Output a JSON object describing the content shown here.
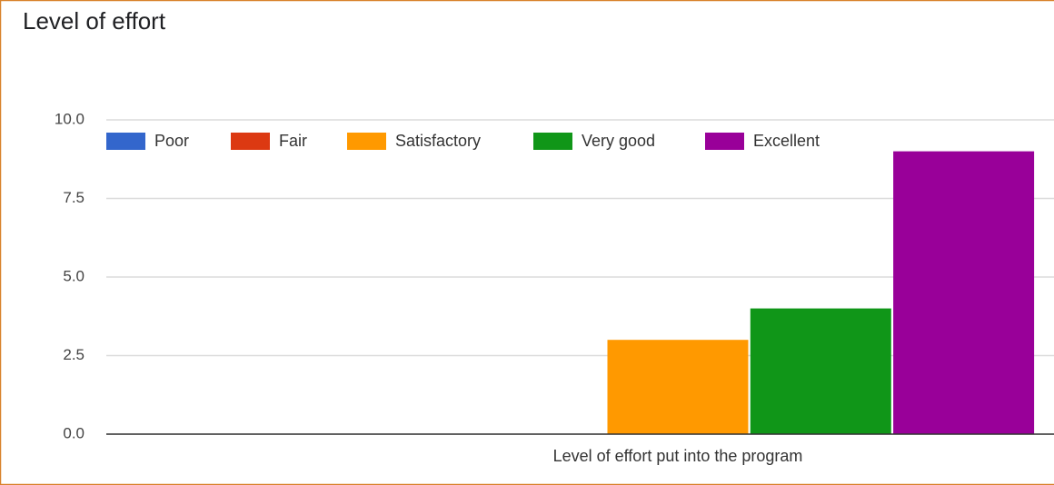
{
  "chart_data": {
    "type": "bar",
    "title": "Level of effort",
    "categories": [
      "Level of effort put into the program"
    ],
    "series": [
      {
        "name": "Poor",
        "color": "#3366cc",
        "values": [
          0
        ]
      },
      {
        "name": "Fair",
        "color": "#dc3912",
        "values": [
          0
        ]
      },
      {
        "name": "Satisfactory",
        "color": "#ff9900",
        "values": [
          3
        ]
      },
      {
        "name": "Very good",
        "color": "#109618",
        "values": [
          4
        ]
      },
      {
        "name": "Excellent",
        "color": "#990099",
        "values": [
          9
        ]
      }
    ],
    "ylim": [
      0,
      10
    ],
    "yticks": [
      {
        "value": 0,
        "label": "0.0"
      },
      {
        "value": 2.5,
        "label": "2.5"
      },
      {
        "value": 5,
        "label": "5.0"
      },
      {
        "value": 7.5,
        "label": "7.5"
      },
      {
        "value": 10,
        "label": "10.0"
      }
    ],
    "grid": true,
    "legend": "top"
  }
}
